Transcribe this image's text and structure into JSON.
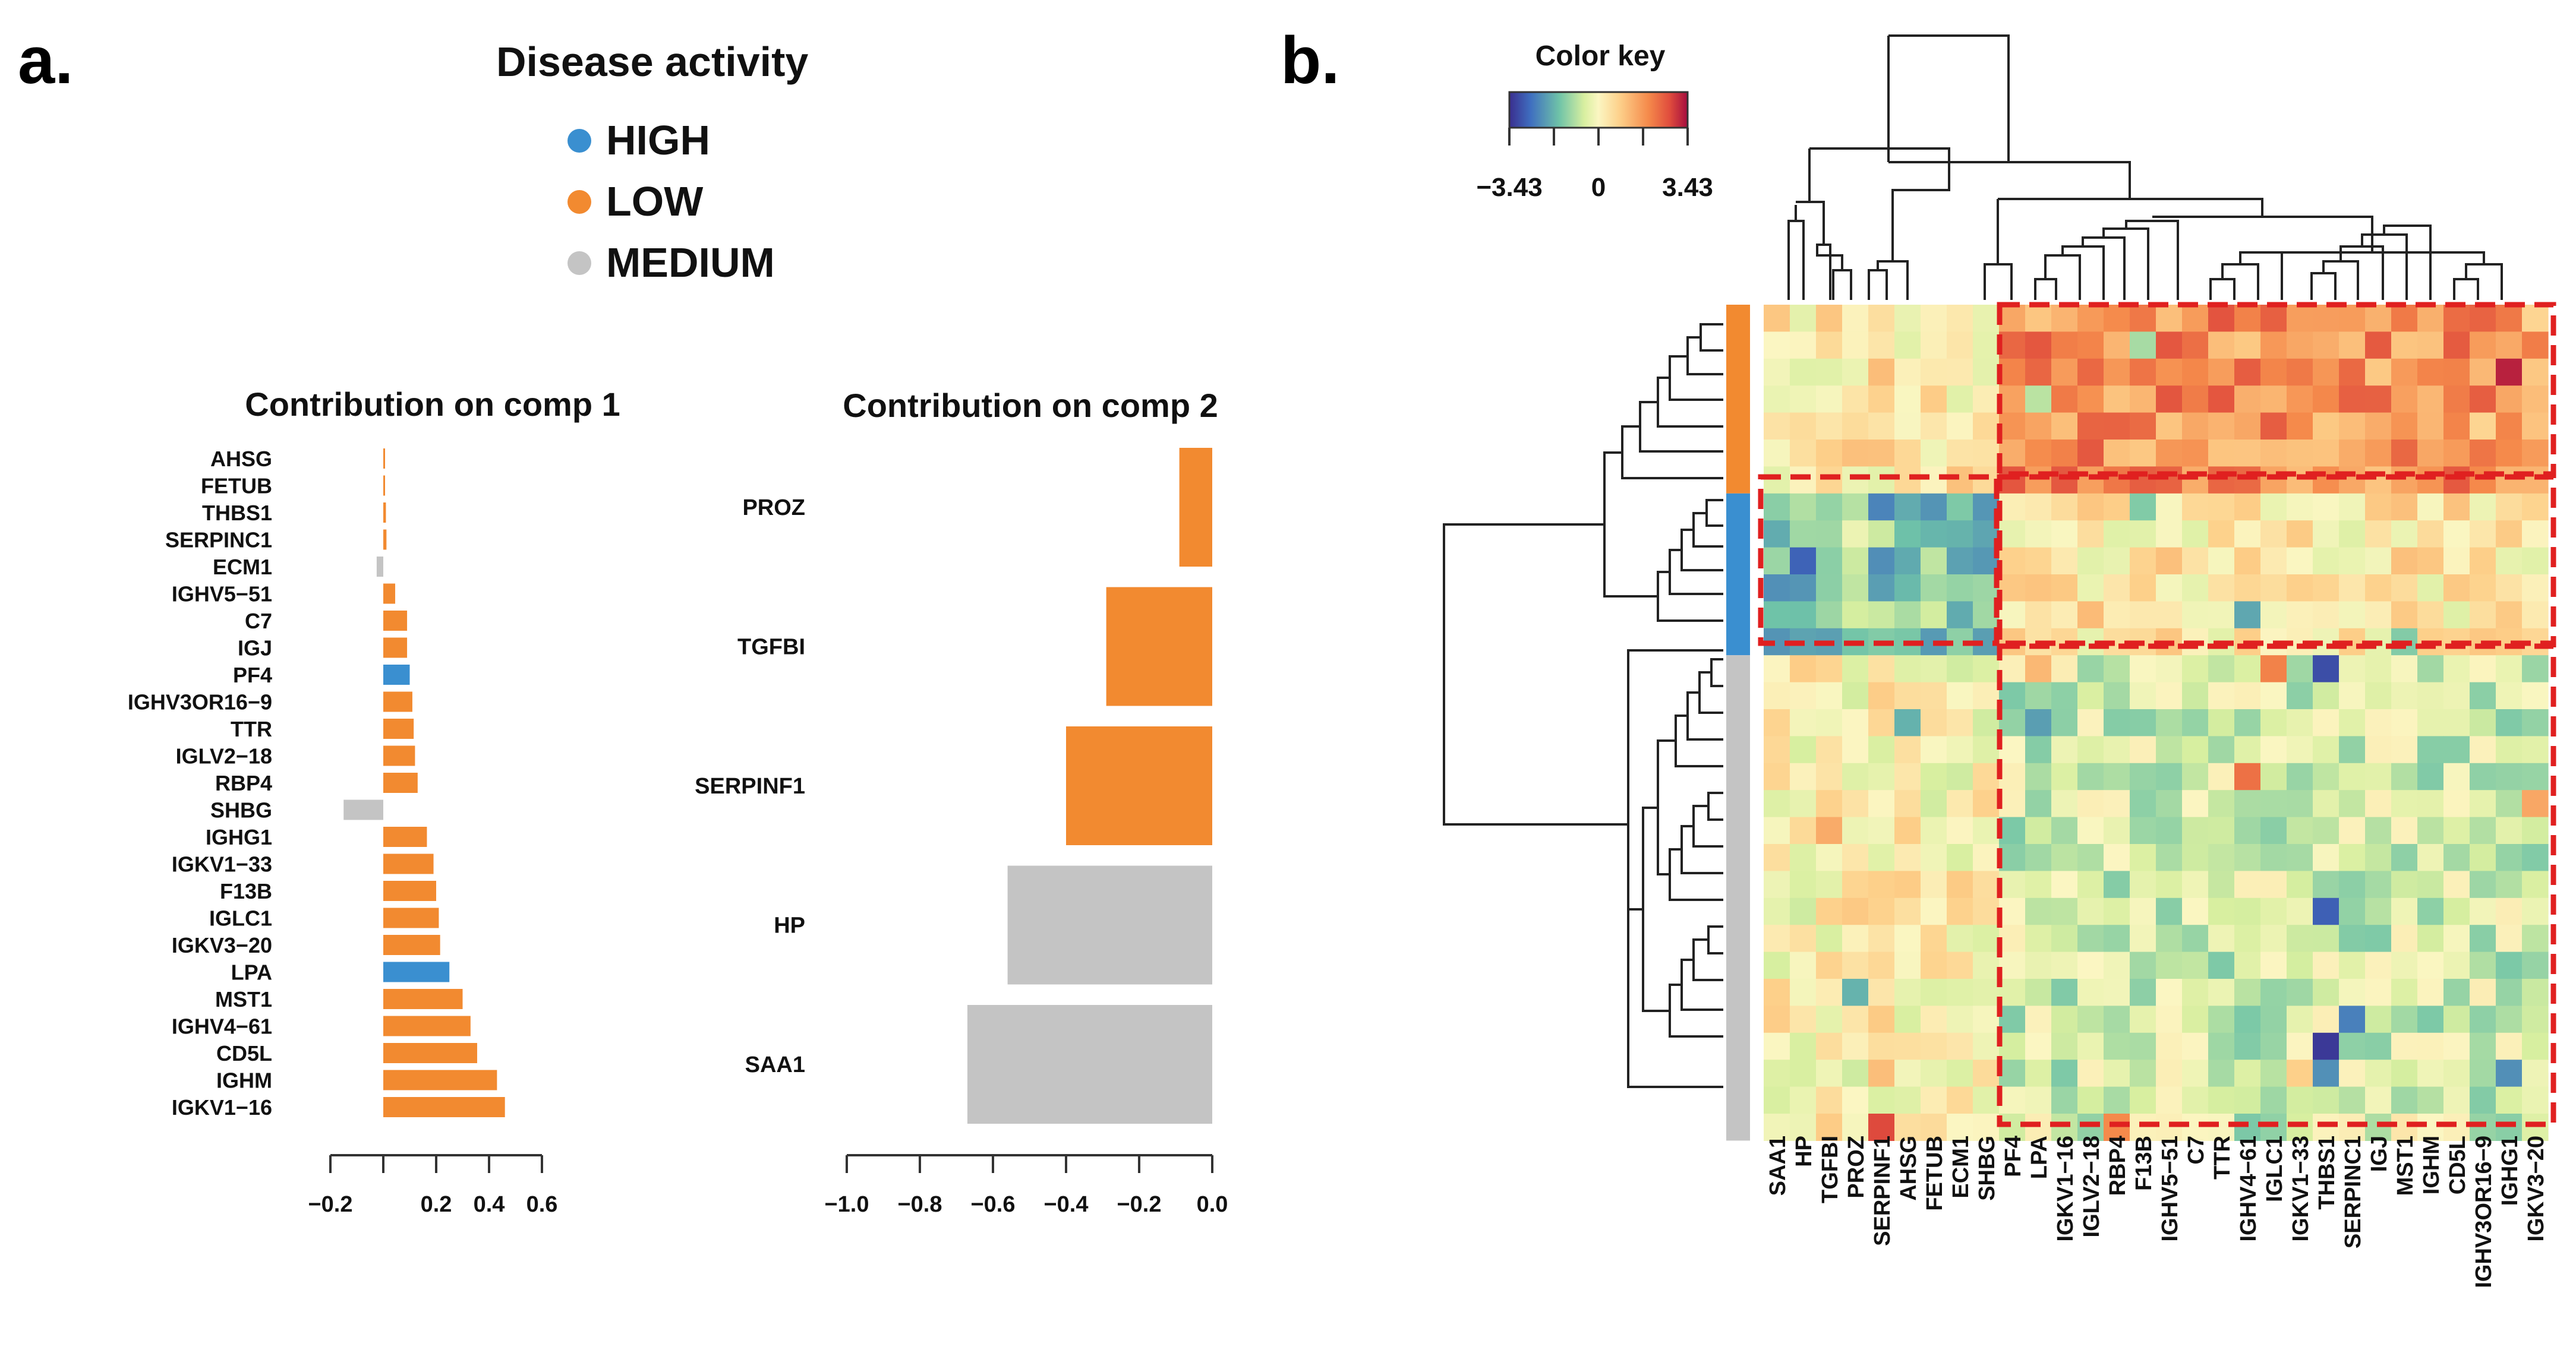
{
  "panel_labels": {
    "a": "a.",
    "b": "b."
  },
  "legend": {
    "title": "Disease activity",
    "entries": [
      {
        "label": "HIGH",
        "color": "#3a8fd0"
      },
      {
        "label": "LOW",
        "color": "#f28a30"
      },
      {
        "label": "MEDIUM",
        "color": "#c4c4c4"
      }
    ]
  },
  "colors": {
    "HIGH": "#3a8fd0",
    "LOW": "#f28a30",
    "MEDIUM": "#c4c4c4",
    "highlight": "#e02020"
  },
  "chart_data": [
    {
      "type": "bar",
      "orientation": "horizontal",
      "title": "Contribution on comp 1",
      "categories": [
        "AHSG",
        "FETUB",
        "THBS1",
        "SERPINC1",
        "ECM1",
        "IGHV5-51",
        "C7",
        "IGJ",
        "PF4",
        "IGHV3OR16-9",
        "TTR",
        "IGLV2-18",
        "RBP4",
        "SHBG",
        "IGHG1",
        "IGKV1-33",
        "F13B",
        "IGLC1",
        "IGKV3-20",
        "LPA",
        "MST1",
        "IGHV4-61",
        "CD5L",
        "IGHM",
        "IGKV1-16"
      ],
      "category_labels": [
        "AHSG",
        "FETUB",
        "THBS1",
        "SERPINC1",
        "ECM1",
        "IGHV5−51",
        "C7",
        "IGJ",
        "PF4",
        "IGHV3OR16−9",
        "TTR",
        "IGLV2−18",
        "RBP4",
        "SHBG",
        "IGHG1",
        "IGKV1−33",
        "F13B",
        "IGLC1",
        "IGKV3−20",
        "LPA",
        "MST1",
        "IGHV4−61",
        "CD5L",
        "IGHM",
        "IGKV1−16"
      ],
      "values": [
        0.002,
        0.004,
        0.01,
        0.012,
        -0.025,
        0.045,
        0.09,
        0.09,
        0.1,
        0.11,
        0.115,
        0.12,
        0.13,
        -0.15,
        0.165,
        0.19,
        0.2,
        0.21,
        0.215,
        0.25,
        0.3,
        0.33,
        0.355,
        0.43,
        0.46
      ],
      "groups": [
        "LOW",
        "LOW",
        "LOW",
        "LOW",
        "MEDIUM",
        "LOW",
        "LOW",
        "LOW",
        "HIGH",
        "LOW",
        "LOW",
        "LOW",
        "LOW",
        "MEDIUM",
        "LOW",
        "LOW",
        "LOW",
        "LOW",
        "LOW",
        "HIGH",
        "LOW",
        "LOW",
        "LOW",
        "LOW",
        "LOW"
      ],
      "xlim": [
        -0.2,
        0.6
      ],
      "ticks": [
        -0.2,
        0.2,
        0.4,
        0.6
      ],
      "tick_labels": [
        "−0.2",
        "0.2",
        "0.4",
        "0.6"
      ]
    },
    {
      "type": "bar",
      "orientation": "horizontal",
      "title": "Contribution on comp 2",
      "categories": [
        "PROZ",
        "TGFBI",
        "SERPINF1",
        "HP",
        "SAA1"
      ],
      "values": [
        -0.09,
        -0.29,
        -0.4,
        -0.56,
        -0.67
      ],
      "groups": [
        "LOW",
        "LOW",
        "LOW",
        "MEDIUM",
        "MEDIUM"
      ],
      "xlim": [
        -1.0,
        0.0
      ],
      "ticks": [
        -1.0,
        -0.8,
        -0.6,
        -0.4,
        -0.2,
        0.0
      ],
      "tick_labels": [
        "−1.0",
        "−0.8",
        "−0.6",
        "−0.4",
        "−0.2",
        "0.0"
      ]
    },
    {
      "type": "heatmap",
      "color_key": {
        "title": "Color key",
        "min": -3.43,
        "max": 3.43,
        "labels": [
          "−3.43",
          "0",
          "3.43"
        ]
      },
      "columns": [
        "SAA1",
        "HP",
        "TGFBI",
        "PROZ",
        "SERPINF1",
        "AHSG",
        "FETUB",
        "ECM1",
        "SHBG",
        "PF4",
        "LPA",
        "IGKV1-16",
        "IGLV2-18",
        "RBP4",
        "F13B",
        "IGHV5-51",
        "C7",
        "TTR",
        "IGHV4-61",
        "IGLC1",
        "IGKV1-33",
        "THBS1",
        "SERPINC1",
        "IGJ",
        "MST1",
        "IGHM",
        "CD5L",
        "IGHV3OR16-9",
        "IGHG1",
        "IGKV3-20"
      ],
      "column_labels": [
        "SAA1",
        "HP",
        "TGFBI",
        "PROZ",
        "SERPINF1",
        "AHSG",
        "FETUB",
        "ECM1",
        "SHBG",
        "PF4",
        "LPA",
        "IGKV1−16",
        "IGLV2−18",
        "RBP4",
        "F13B",
        "IGHV5−51",
        "C7",
        "TTR",
        "IGHV4−61",
        "IGLC1",
        "IGKV1−33",
        "THBS1",
        "SERPINC1",
        "IGJ",
        "MST1",
        "IGHM",
        "CD5L",
        "IGHV3OR16−9",
        "IGHG1",
        "IGKV3−20"
      ],
      "row_groups": [
        {
          "group": "LOW",
          "count": 7
        },
        {
          "group": "HIGH",
          "count": 6
        },
        {
          "group": "MEDIUM",
          "count": 18
        }
      ],
      "value_summary": {
        "LOW_x_left": 0.3,
        "LOW_x_right": 1.7,
        "HIGH_x_left": -1.4,
        "HIGH_x_right": 0.3,
        "MEDIUM_x_left": 0.1,
        "MEDIUM_x_right": -0.6
      },
      "column_split_index": 9,
      "highlight_blocks": [
        {
          "rows": "LOW",
          "columns": "right cluster"
        },
        {
          "rows": "HIGH",
          "columns": "left cluster"
        },
        {
          "rows": "HIGH",
          "columns": "right cluster"
        },
        {
          "rows": "MEDIUM",
          "columns": "right cluster"
        }
      ]
    }
  ]
}
